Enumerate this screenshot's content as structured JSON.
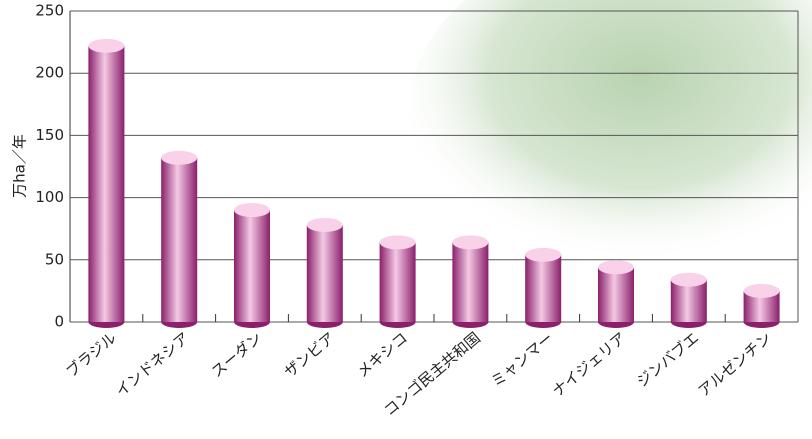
{
  "chart_data": {
    "type": "bar",
    "y_label": "万ha／年",
    "categories": [
      "ブラジル",
      "インドネシア",
      "スーダン",
      "ザンビア",
      "メキシコ",
      "コンゴ民主共和国",
      "ミャンマー",
      "ナイジェリア",
      "ジンバブエ",
      "アルゼンチン"
    ],
    "values": [
      222,
      132,
      90,
      78,
      64,
      64,
      54,
      44,
      34,
      25
    ],
    "color": "#a0307f",
    "ylim": [
      0,
      250
    ],
    "yticks": [
      0,
      50,
      100,
      150,
      200,
      250
    ],
    "grid": true
  }
}
